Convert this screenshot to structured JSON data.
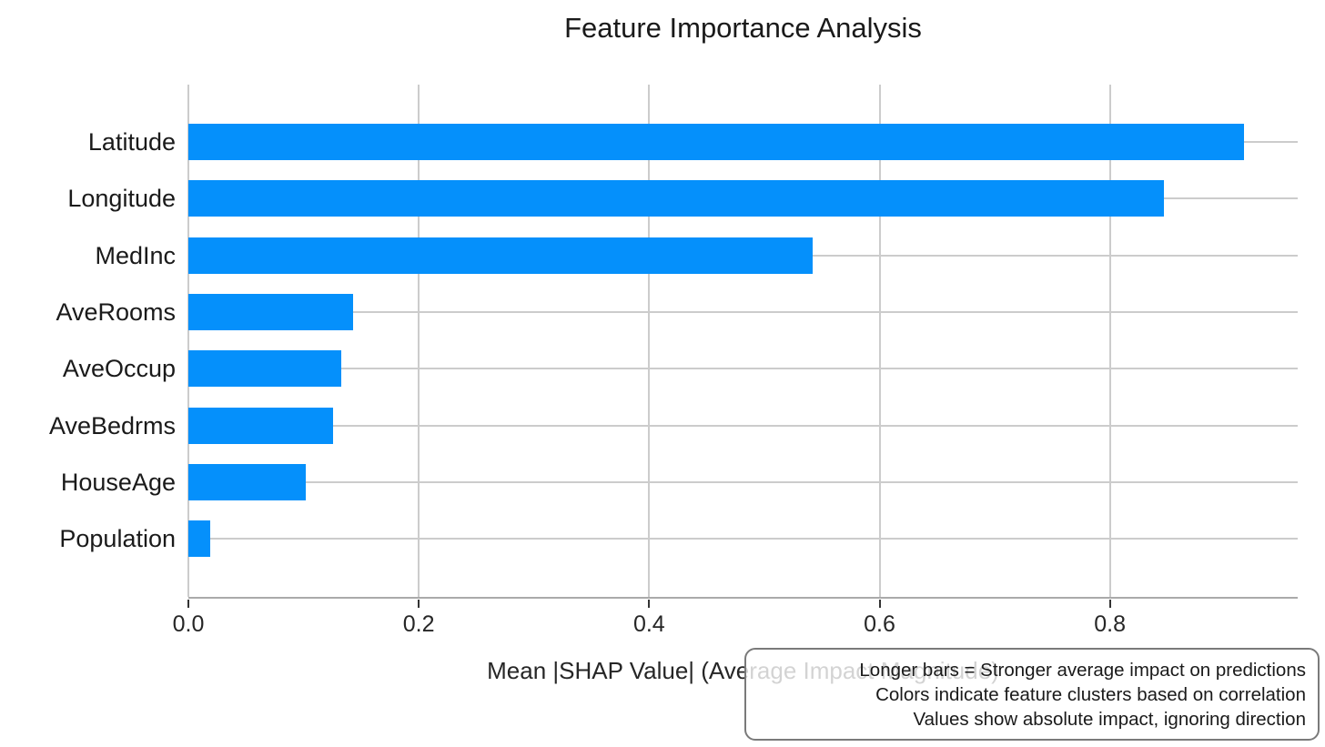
{
  "chart_data": {
    "type": "bar",
    "orientation": "horizontal",
    "title": "Feature Importance Analysis",
    "xlabel": "Mean |SHAP Value| (Average Impact Magnitude)",
    "ylabel": "",
    "categories": [
      "Latitude",
      "Longitude",
      "MedInc",
      "AveRooms",
      "AveOccup",
      "AveBedrms",
      "HouseAge",
      "Population"
    ],
    "values": [
      0.916,
      0.847,
      0.542,
      0.143,
      0.133,
      0.126,
      0.102,
      0.019
    ],
    "xlim": [
      0,
      0.963
    ],
    "x_ticks": [
      0,
      0.2,
      0.4,
      0.6,
      0.8
    ],
    "x_tick_labels": [
      "0.0",
      "0.2",
      "0.4",
      "0.6",
      "0.8"
    ],
    "grid": true,
    "legend": "none",
    "bar_color": "#0590fb",
    "annotation": {
      "lines": [
        "Longer bars = Stronger average impact on predictions",
        "Colors indicate feature clusters based on correlation",
        "Values show absolute impact, ignoring direction"
      ]
    }
  },
  "colors": {
    "bar": "#0590fb",
    "grid": "#cccccc",
    "axis": "#aaaaaa",
    "tick_mark": "#333333",
    "text": "#1a1a1a",
    "annotation_border": "#7a7a7a"
  }
}
